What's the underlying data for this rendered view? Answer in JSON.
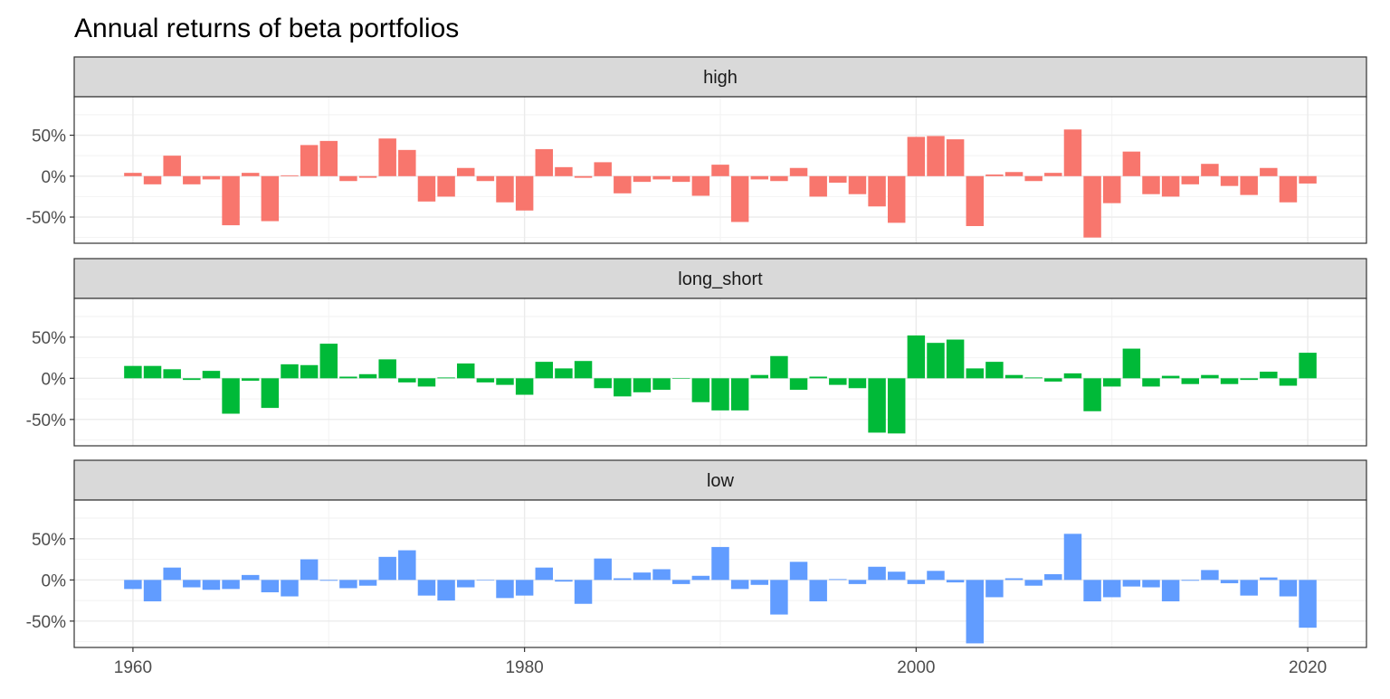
{
  "chart_data": {
    "type": "bar",
    "title": "Annual returns of beta portfolios",
    "xlabel": "",
    "ylabel": "",
    "x": [
      1960,
      1961,
      1962,
      1963,
      1964,
      1965,
      1966,
      1967,
      1968,
      1969,
      1970,
      1971,
      1972,
      1973,
      1974,
      1975,
      1976,
      1977,
      1978,
      1979,
      1980,
      1981,
      1982,
      1983,
      1984,
      1985,
      1986,
      1987,
      1988,
      1989,
      1990,
      1991,
      1992,
      1993,
      1994,
      1995,
      1996,
      1997,
      1998,
      1999,
      2000,
      2001,
      2002,
      2003,
      2004,
      2005,
      2006,
      2007,
      2008,
      2009,
      2010,
      2011,
      2012,
      2013,
      2014,
      2015,
      2016,
      2017,
      2018,
      2019,
      2020
    ],
    "x_ticks": [
      1960,
      1980,
      2000,
      2020
    ],
    "x_tick_labels": [
      "1960",
      "1980",
      "2000",
      "2020"
    ],
    "xlim": [
      1957.0,
      2023.0
    ],
    "y_ticks": [
      -0.5,
      0.0,
      0.5
    ],
    "y_tick_labels": [
      "-50%",
      "0%",
      "50%"
    ],
    "ylim": [
      -0.82,
      0.97
    ],
    "grid": true,
    "facets": [
      {
        "name": "high",
        "color": "#F8766D",
        "values": [
          0.04,
          -0.1,
          0.25,
          -0.1,
          -0.04,
          -0.6,
          0.04,
          -0.55,
          0.01,
          0.38,
          0.43,
          -0.06,
          -0.02,
          0.46,
          0.32,
          -0.31,
          -0.25,
          0.1,
          -0.06,
          -0.32,
          -0.42,
          0.33,
          0.11,
          -0.02,
          0.17,
          -0.21,
          -0.07,
          -0.04,
          -0.07,
          -0.24,
          0.14,
          -0.56,
          -0.04,
          -0.06,
          0.1,
          -0.25,
          -0.08,
          -0.22,
          -0.37,
          -0.57,
          0.48,
          0.49,
          0.45,
          -0.61,
          0.02,
          0.05,
          -0.06,
          0.04,
          0.57,
          -0.75,
          -0.33,
          0.3,
          -0.22,
          -0.25,
          -0.1,
          0.15,
          -0.12,
          -0.23,
          0.1,
          -0.32,
          -0.09
        ]
      },
      {
        "name": "long_short",
        "color": "#00BA38",
        "values": [
          0.15,
          0.15,
          0.11,
          -0.02,
          0.09,
          -0.43,
          -0.03,
          -0.36,
          0.17,
          0.16,
          0.42,
          0.02,
          0.05,
          0.23,
          -0.05,
          -0.1,
          0.01,
          0.18,
          -0.05,
          -0.08,
          -0.2,
          0.2,
          0.12,
          0.21,
          -0.12,
          -0.22,
          -0.17,
          -0.14,
          0.0,
          -0.29,
          -0.39,
          -0.39,
          0.04,
          0.27,
          -0.14,
          0.02,
          -0.08,
          -0.12,
          -0.66,
          -0.67,
          0.52,
          0.43,
          0.47,
          0.12,
          0.2,
          0.04,
          0.01,
          -0.04,
          0.06,
          -0.4,
          -0.1,
          0.36,
          -0.1,
          0.03,
          -0.07,
          0.04,
          -0.07,
          -0.02,
          0.08,
          -0.09,
          0.31
        ]
      },
      {
        "name": "low",
        "color": "#619CFF",
        "values": [
          -0.11,
          -0.26,
          0.15,
          -0.09,
          -0.12,
          -0.11,
          0.06,
          -0.15,
          -0.2,
          0.25,
          -0.01,
          -0.1,
          -0.07,
          0.28,
          0.36,
          -0.19,
          -0.25,
          -0.09,
          0.0,
          -0.22,
          -0.19,
          0.15,
          -0.02,
          -0.29,
          0.26,
          0.02,
          0.09,
          0.13,
          -0.05,
          0.05,
          0.4,
          -0.11,
          -0.06,
          -0.42,
          0.22,
          -0.26,
          0.01,
          -0.05,
          0.16,
          0.1,
          -0.05,
          0.11,
          -0.03,
          -0.77,
          -0.21,
          0.02,
          -0.07,
          0.07,
          0.56,
          -0.26,
          -0.21,
          -0.08,
          -0.09,
          -0.26,
          -0.01,
          0.12,
          -0.04,
          -0.19,
          0.03,
          -0.2,
          -0.58
        ]
      }
    ]
  }
}
